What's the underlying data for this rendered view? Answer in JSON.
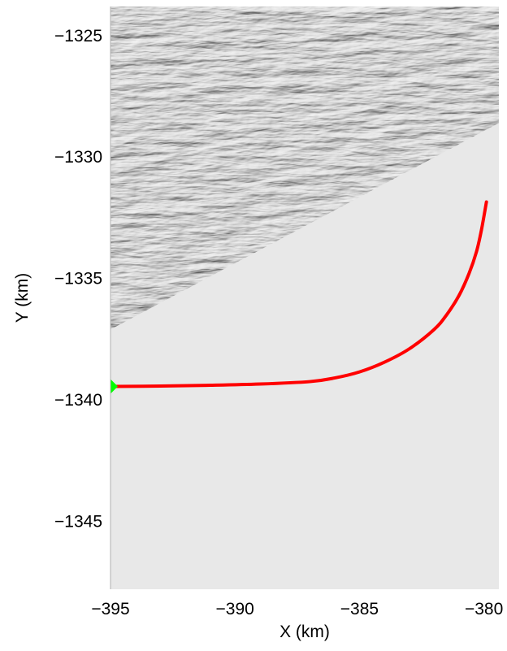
{
  "chart_data": {
    "type": "line",
    "title": "",
    "xlabel": "X (km)",
    "ylabel": "Y (km)",
    "xlim": [
      -395,
      -379.4
    ],
    "ylim": [
      -1347.8,
      -1323.8
    ],
    "x_ticks": [
      -395,
      -390,
      -385,
      -380
    ],
    "x_tick_labels": [
      "−395",
      "−390",
      "−385",
      "−380"
    ],
    "y_ticks": [
      -1325,
      -1330,
      -1335,
      -1340,
      -1345
    ],
    "y_tick_labels": [
      "−1325",
      "−1330",
      "−1335",
      "−1340",
      "−1345"
    ],
    "grid": false,
    "background": {
      "description_free": true,
      "rough_terrain_boundary": [
        [
          -395,
          -1337.1
        ],
        [
          -379.4,
          -1328.6
        ]
      ],
      "rough_color": "#dcdcdc",
      "smooth_color": "#e8e8e8"
    },
    "series": [
      {
        "color": "#ff0000",
        "x": [
          -395.0,
          -393.0,
          -391.0,
          -389.0,
          -387.0,
          -386.0,
          -385.0,
          -384.0,
          -383.0,
          -382.0,
          -381.5,
          -381.0,
          -380.6,
          -380.3,
          -380.1,
          -379.9
        ],
        "y": [
          -1339.45,
          -1339.43,
          -1339.4,
          -1339.35,
          -1339.25,
          -1339.1,
          -1338.85,
          -1338.45,
          -1337.9,
          -1337.1,
          -1336.5,
          -1335.7,
          -1334.8,
          -1333.9,
          -1333.0,
          -1331.85
        ]
      }
    ],
    "marker": {
      "x": -395.0,
      "y": -1339.45,
      "color": "#00ff00",
      "shape": "diamond"
    }
  }
}
